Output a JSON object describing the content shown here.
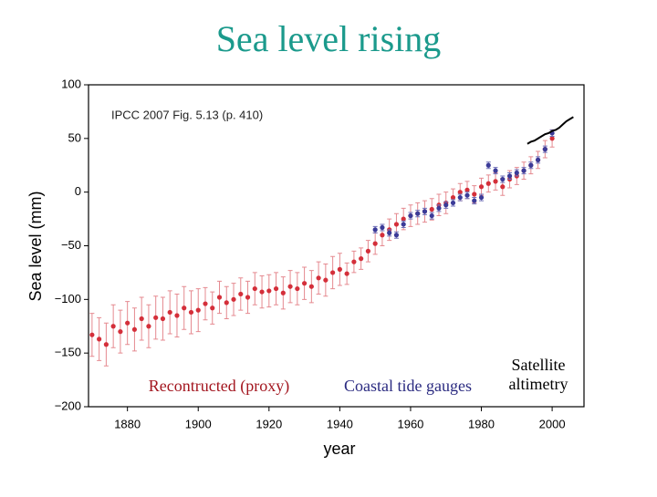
{
  "chart_data": {
    "type": "scatter",
    "title": "Sea level rising",
    "annotation": "IPCC 2007 Fig. 5.13 (p. 410)",
    "x_label": "year",
    "y_label": "Sea level (mm)",
    "xlim": [
      1869,
      2009
    ],
    "ylim": [
      -200,
      100
    ],
    "xticks": [
      1880,
      1900,
      1920,
      1940,
      1960,
      1980,
      2000
    ],
    "yticks": [
      {
        "value": -200,
        "label": "−200"
      },
      {
        "value": -150,
        "label": "−150"
      },
      {
        "value": -100,
        "label": "−100"
      },
      {
        "value": -50,
        "label": "−50"
      },
      0,
      50,
      100
    ],
    "series": [
      {
        "name": "Recontructed (proxy)",
        "type": "errorbar",
        "color": "#d42f3a",
        "error_color": "#e58a90",
        "x": [
          1870,
          1872,
          1874,
          1876,
          1878,
          1880,
          1882,
          1884,
          1886,
          1888,
          1890,
          1892,
          1894,
          1896,
          1898,
          1900,
          1902,
          1904,
          1906,
          1908,
          1910,
          1912,
          1914,
          1916,
          1918,
          1920,
          1922,
          1924,
          1926,
          1928,
          1930,
          1932,
          1934,
          1936,
          1938,
          1940,
          1942,
          1944,
          1946,
          1948,
          1950,
          1952,
          1954,
          1956,
          1958,
          1960,
          1962,
          1964,
          1966,
          1968,
          1970,
          1972,
          1974,
          1976,
          1978,
          1980,
          1982,
          1984,
          1986,
          1988,
          1990,
          1992,
          1994,
          1996,
          1998,
          2000
        ],
        "values": [
          -133,
          -137,
          -142,
          -125,
          -130,
          -122,
          -128,
          -118,
          -125,
          -117,
          -118,
          -112,
          -115,
          -108,
          -112,
          -110,
          -104,
          -108,
          -98,
          -103,
          -100,
          -95,
          -98,
          -90,
          -93,
          -92,
          -90,
          -94,
          -88,
          -90,
          -85,
          -88,
          -80,
          -82,
          -75,
          -72,
          -76,
          -65,
          -62,
          -55,
          -48,
          -40,
          -35,
          -30,
          -25,
          -22,
          -20,
          -18,
          -16,
          -12,
          -10,
          -5,
          0,
          2,
          -2,
          5,
          8,
          10,
          5,
          12,
          15,
          20,
          25,
          30,
          40,
          50
        ],
        "errors": [
          20,
          20,
          20,
          20,
          20,
          20,
          20,
          20,
          20,
          20,
          20,
          20,
          20,
          20,
          20,
          20,
          15,
          15,
          15,
          15,
          15,
          15,
          15,
          15,
          15,
          15,
          15,
          15,
          15,
          15,
          15,
          15,
          15,
          15,
          15,
          15,
          10,
          10,
          10,
          10,
          10,
          10,
          10,
          10,
          10,
          10,
          10,
          10,
          10,
          10,
          10,
          8,
          8,
          8,
          8,
          8,
          8,
          8,
          8,
          8,
          8,
          8,
          8,
          8,
          8,
          8
        ]
      },
      {
        "name": "Coastal tide gauges",
        "type": "errorbar",
        "color": "#3b3b98",
        "error_color": "#6f6fb8",
        "x": [
          1950,
          1952,
          1954,
          1956,
          1958,
          1960,
          1962,
          1964,
          1966,
          1968,
          1970,
          1972,
          1974,
          1976,
          1978,
          1980,
          1982,
          1984,
          1986,
          1988,
          1990,
          1992,
          1994,
          1996,
          1998,
          2000
        ],
        "values": [
          -35,
          -33,
          -38,
          -40,
          -30,
          -22,
          -20,
          -18,
          -22,
          -15,
          -12,
          -10,
          -5,
          -3,
          -8,
          -5,
          25,
          20,
          12,
          15,
          18,
          20,
          25,
          30,
          40,
          55
        ],
        "errors": [
          3,
          3,
          3,
          3,
          3,
          3,
          3,
          3,
          3,
          3,
          3,
          3,
          3,
          3,
          3,
          3,
          3,
          3,
          3,
          3,
          3,
          3,
          3,
          3,
          3,
          3
        ]
      },
      {
        "name": "Satellite altimetry",
        "type": "line",
        "color": "#000000",
        "x": [
          1993,
          1994,
          1995,
          1996,
          1997,
          1998,
          1999,
          2000,
          2001,
          2002,
          2003,
          2004,
          2005,
          2006
        ],
        "values": [
          45,
          47,
          48,
          50,
          52,
          54,
          55,
          57,
          58,
          60,
          63,
          66,
          68,
          70
        ]
      }
    ]
  }
}
